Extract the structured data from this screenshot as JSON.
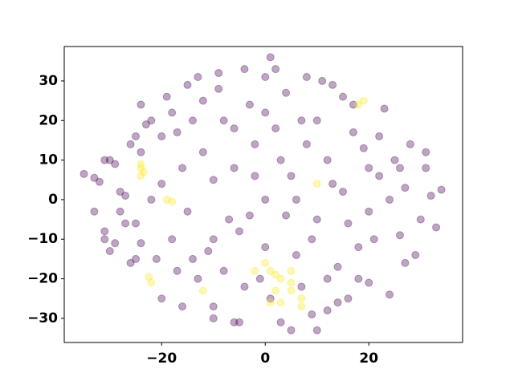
{
  "chart_data": {
    "type": "scatter",
    "xlim": [
      -38.8,
      38.1
    ],
    "ylim": [
      -36.1,
      38.7
    ],
    "xticks": [
      {
        "value": -20,
        "label": "−20"
      },
      0,
      20
    ],
    "yticks": [
      {
        "value": -30,
        "label": "−30"
      },
      {
        "value": -20,
        "label": "−20"
      },
      {
        "value": -10,
        "label": "−10"
      },
      0,
      10,
      20,
      30
    ],
    "alpha": 0.35,
    "series": [
      {
        "color": "#440154",
        "x": [
          -35,
          -33,
          -32,
          -33,
          -31,
          -31,
          -30,
          -31,
          -30,
          -29,
          -28,
          -27,
          -27,
          -26,
          -25,
          -26,
          -25,
          -24,
          -24,
          -23,
          -22,
          -21,
          -20,
          -19,
          -18,
          -17,
          -16,
          -15,
          -14,
          -13,
          -12,
          -11,
          -10,
          -10,
          -9,
          -8,
          -7,
          -6,
          -5,
          -4,
          -3,
          -2,
          -1,
          0,
          1,
          1,
          2,
          3,
          4,
          5,
          7,
          8,
          9,
          10,
          11,
          12,
          13,
          14,
          15,
          16,
          17,
          18,
          19,
          20,
          21,
          22,
          23,
          24,
          25,
          26,
          27,
          28,
          29,
          30,
          31,
          32,
          33,
          34,
          31,
          26,
          -20,
          -15,
          -10,
          -5,
          0,
          5,
          10,
          15,
          20,
          -18,
          -12,
          -6,
          0,
          6,
          12,
          18,
          -25,
          -22,
          -16,
          -8,
          -2,
          4,
          8,
          14,
          22,
          -28,
          -14,
          -4,
          2,
          12,
          24,
          -20,
          -10,
          0,
          10,
          20,
          -6,
          6,
          16,
          -24,
          -13,
          9,
          3,
          -3,
          13,
          -17,
          17,
          -9,
          7,
          27,
          -29
        ],
        "y": [
          6.5,
          5.5,
          4.5,
          -3,
          -8,
          -10,
          -13,
          10,
          10,
          9,
          2,
          1,
          -6,
          -16,
          -15,
          14,
          16,
          12,
          24,
          19,
          20,
          -15,
          -25,
          26,
          22,
          17,
          -27,
          29,
          -15,
          31,
          25,
          -13,
          -27,
          -30,
          32,
          20,
          -5,
          -31,
          -31,
          33,
          24,
          14,
          -20,
          31,
          36,
          -25,
          33,
          -31,
          27,
          -33,
          20,
          31,
          -29,
          -33,
          30,
          -28,
          29,
          -26,
          26,
          -25,
          17,
          -20,
          13,
          -21,
          -10,
          6,
          23,
          -24,
          10,
          -9,
          3,
          14,
          -14,
          -5,
          8,
          1,
          -7,
          2.5,
          12,
          8,
          4,
          -3,
          5,
          -8,
          0,
          6,
          -5,
          2,
          -3,
          -10,
          12,
          18,
          -12,
          -14,
          10,
          -12,
          -6,
          0,
          8,
          -18,
          6,
          -4,
          14,
          -17,
          16,
          -3,
          20,
          -22,
          18,
          -20,
          0,
          16,
          -10,
          22,
          20,
          8,
          8,
          0,
          -6,
          -11,
          -20,
          -10,
          10,
          -4,
          4,
          -18,
          24,
          28,
          -22,
          -16,
          -11
        ]
      },
      {
        "color": "#fde725",
        "x": [
          -24,
          -24,
          -24,
          -23.5,
          -18,
          -19,
          -22.5,
          -22,
          -12,
          2,
          3,
          2,
          5,
          5,
          7,
          7,
          3,
          1,
          -2,
          1,
          18,
          19,
          10,
          0,
          5
        ],
        "y": [
          8,
          6,
          9,
          7,
          -0.5,
          0,
          -19.5,
          -21,
          -23,
          -19,
          -20,
          -23,
          -21,
          -23,
          -25,
          -27,
          -26,
          -26,
          -18,
          -18,
          24,
          25,
          4,
          -16,
          -18
        ]
      }
    ]
  }
}
